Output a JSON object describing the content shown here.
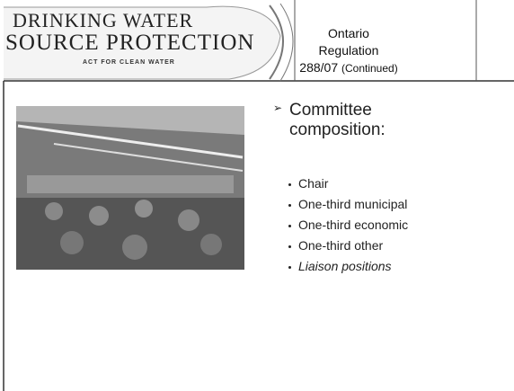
{
  "header": {
    "logo_line1": "DRINKING WATER",
    "logo_line2": "SOURCE PROTECTION",
    "logo_tagline": "ACT FOR CLEAN WATER",
    "title_line1": "Ontario Regulation",
    "title_line2": "288/07",
    "title_note": "(Continued)"
  },
  "content": {
    "heading": "Committee composition:",
    "items": [
      "Chair",
      "One-third municipal",
      "One-third economic",
      "One-third other",
      "Liaison positions"
    ]
  }
}
